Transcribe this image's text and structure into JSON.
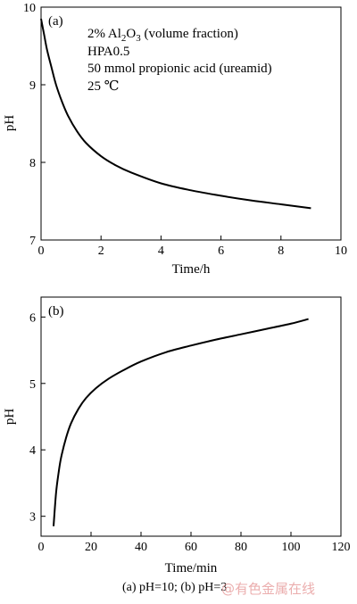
{
  "chart_data": [
    {
      "type": "line",
      "panel_label": "(a)",
      "xlabel": "Time/h",
      "ylabel": "pH",
      "xlim": [
        0,
        10
      ],
      "ylim": [
        7,
        10
      ],
      "xticks": [
        0,
        2,
        4,
        6,
        8,
        10
      ],
      "yticks": [
        7,
        8,
        9,
        10
      ],
      "grid": false,
      "annotations": [
        "HPA0.5",
        "50 mmol propionic acid (ureamid)",
        "25 ℃"
      ],
      "annotation_formula": {
        "prefix": "2% Al",
        "sub1": "2",
        "mid": "O",
        "sub2": "3",
        "suffix": " (volume fraction)"
      },
      "series": [
        {
          "x": [
            0,
            0.1,
            0.2,
            0.35,
            0.5,
            0.7,
            0.9,
            1.2,
            1.5,
            2.0,
            2.5,
            3.0,
            4.0,
            5.0,
            6.0,
            7.0,
            8.0,
            9.0
          ],
          "y": [
            9.85,
            9.65,
            9.45,
            9.22,
            9.0,
            8.78,
            8.6,
            8.4,
            8.25,
            8.08,
            7.96,
            7.87,
            7.73,
            7.64,
            7.57,
            7.51,
            7.46,
            7.41
          ]
        }
      ]
    },
    {
      "type": "line",
      "panel_label": "(b)",
      "xlabel": "Time/min",
      "ylabel": "pH",
      "xlim": [
        0,
        120
      ],
      "ylim": [
        2.7,
        6.3
      ],
      "xticks": [
        0,
        20,
        40,
        60,
        80,
        100,
        120
      ],
      "yticks": [
        3,
        4,
        5,
        6
      ],
      "grid": false,
      "series": [
        {
          "x": [
            5,
            6,
            7,
            8,
            10,
            12,
            15,
            18,
            22,
            27,
            33,
            40,
            50,
            60,
            70,
            80,
            90,
            100,
            107
          ],
          "y": [
            2.85,
            3.35,
            3.65,
            3.88,
            4.18,
            4.4,
            4.62,
            4.78,
            4.93,
            5.07,
            5.2,
            5.33,
            5.47,
            5.57,
            5.66,
            5.74,
            5.82,
            5.9,
            5.97
          ]
        }
      ]
    }
  ],
  "caption": "(a) pH=10; (b) pH=3",
  "watermark": "@有色金属在线"
}
